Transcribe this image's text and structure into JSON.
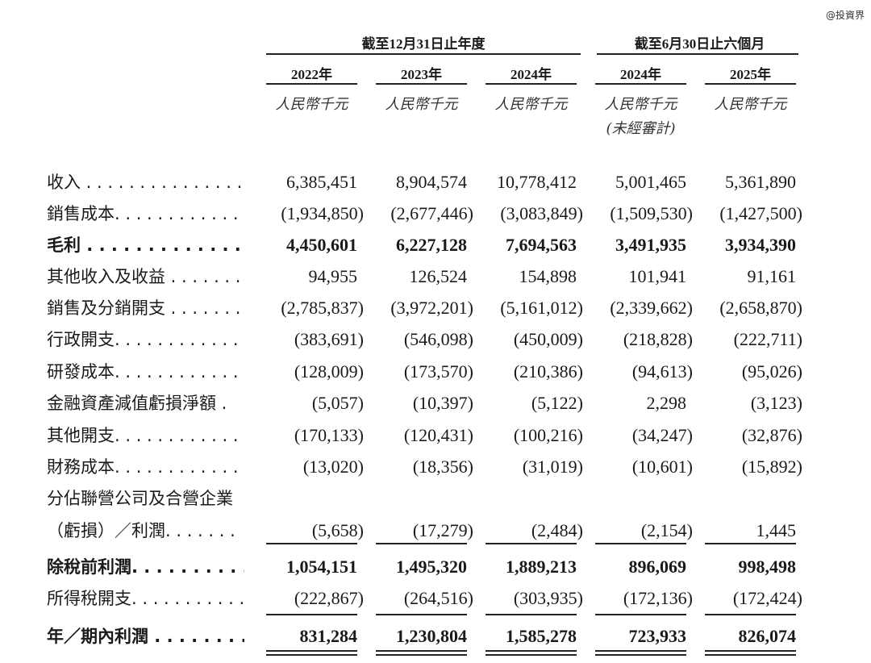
{
  "watermark": "@投資界",
  "header": {
    "group_annual": "截至12月31日止年度",
    "group_interim": "截至6月30日止六個月",
    "columns": [
      {
        "year": "2022年",
        "unit": "人民幣千元",
        "note": ""
      },
      {
        "year": "2023年",
        "unit": "人民幣千元",
        "note": ""
      },
      {
        "year": "2024年",
        "unit": "人民幣千元",
        "note": ""
      },
      {
        "year": "2024年",
        "unit": "人民幣千元",
        "note": "(未經審計)"
      },
      {
        "year": "2025年",
        "unit": "人民幣千元",
        "note": ""
      }
    ]
  },
  "rows": [
    {
      "label": "收入 . . . . . . . . . . . . . . .",
      "bold": false,
      "values": [
        "6,385,451",
        "8,904,574",
        "10,778,412",
        "5,001,465",
        "5,361,890"
      ]
    },
    {
      "label": "銷售成本. . . . . . . . . . . . .",
      "bold": false,
      "values": [
        "(1,934,850)",
        "(2,677,446)",
        "(3,083,849)",
        "(1,509,530)",
        "(1,427,500)"
      ]
    },
    {
      "label": "毛利 . . . . . . . . . . . . . . .",
      "bold": true,
      "values": [
        "4,450,601",
        "6,227,128",
        "7,694,563",
        "3,491,935",
        "3,934,390"
      ]
    },
    {
      "label": "其他收入及收益 . . . . . . .",
      "bold": false,
      "values": [
        "94,955",
        "126,524",
        "154,898",
        "101,941",
        "91,161"
      ]
    },
    {
      "label": "銷售及分銷開支 . . . . . . .",
      "bold": false,
      "values": [
        "(2,785,837)",
        "(3,972,201)",
        "(5,161,012)",
        "(2,339,662)",
        "(2,658,870)"
      ]
    },
    {
      "label": "行政開支. . . . . . . . . . . . .",
      "bold": false,
      "values": [
        "(383,691)",
        "(546,098)",
        "(450,009)",
        "(218,828)",
        "(222,711)"
      ]
    },
    {
      "label": "研發成本. . . . . . . . . . . . .",
      "bold": false,
      "values": [
        "(128,009)",
        "(173,570)",
        "(210,386)",
        "(94,613)",
        "(95,026)"
      ]
    },
    {
      "label": "金融資產減值虧損淨額 .",
      "bold": false,
      "values": [
        "(5,057)",
        "(10,397)",
        "(5,122)",
        "2,298",
        "(3,123)"
      ]
    },
    {
      "label": "其他開支. . . . . . . . . . . . .",
      "bold": false,
      "values": [
        "(170,133)",
        "(120,431)",
        "(100,216)",
        "(34,247)",
        "(32,876)"
      ]
    },
    {
      "label": "財務成本. . . . . . . . . . . . .",
      "bold": false,
      "values": [
        "(13,020)",
        "(18,356)",
        "(31,019)",
        "(10,601)",
        "(15,892)"
      ]
    },
    {
      "label": "分佔聯營公司及合營企業",
      "bold": false,
      "values": []
    },
    {
      "label": "（虧損）／利潤. . . . . . .",
      "bold": false,
      "values": [
        "(5,658)",
        "(17,279)",
        "(2,484)",
        "(2,154)",
        "1,445"
      ]
    },
    {
      "label": "除稅前利潤. . . . . . . . . . .",
      "bold": true,
      "values": [
        "1,054,151",
        "1,495,320",
        "1,889,213",
        "896,069",
        "998,498"
      ]
    },
    {
      "label": "所得稅開支. . . . . . . . . . .",
      "bold": false,
      "values": [
        "(222,867)",
        "(264,516)",
        "(303,935)",
        "(172,136)",
        "(172,424)"
      ]
    },
    {
      "label": "年／期內利潤 . . . . . . . .",
      "bold": true,
      "values": [
        "831,284",
        "1,230,804",
        "1,585,278",
        "723,933",
        "826,074"
      ]
    }
  ]
}
